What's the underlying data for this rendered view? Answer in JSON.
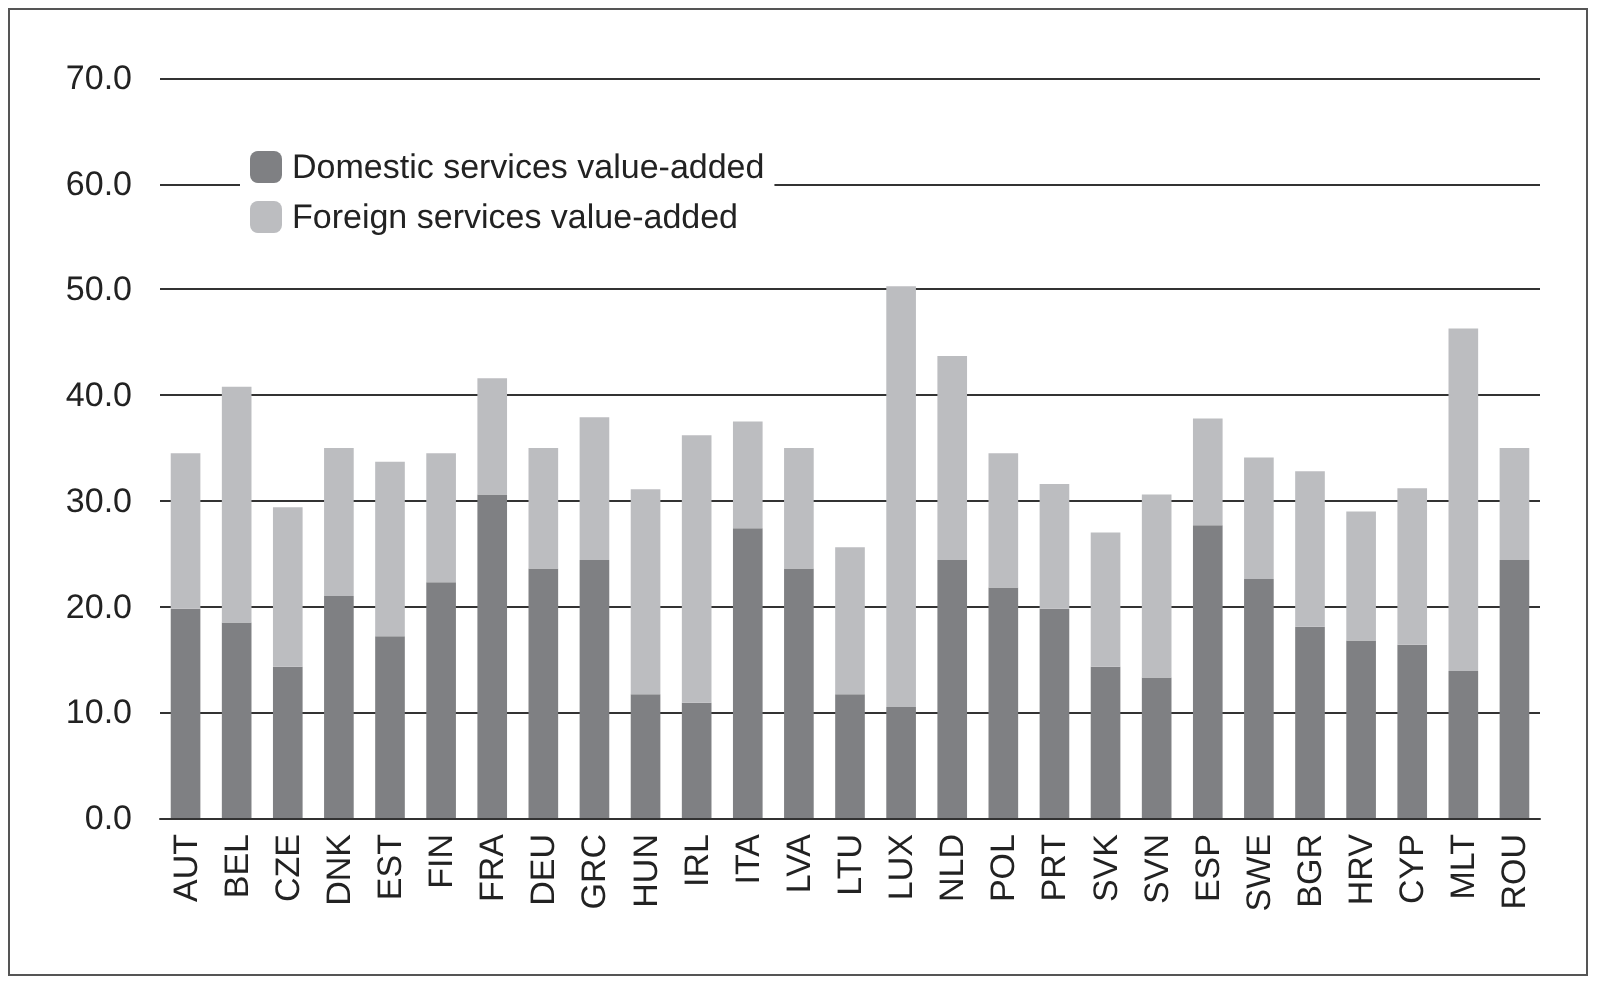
{
  "chart_data": {
    "type": "bar",
    "stacked": true,
    "categories": [
      "AUT",
      "BEL",
      "CZE",
      "DNK",
      "EST",
      "FIN",
      "FRA",
      "DEU",
      "GRC",
      "HUN",
      "IRL",
      "ITA",
      "LVA",
      "LTU",
      "LUX",
      "NLD",
      "POL",
      "PRT",
      "SVK",
      "SVN",
      "ESP",
      "SWE",
      "BGR",
      "HRV",
      "CYP",
      "MLT",
      "ROU"
    ],
    "series": [
      {
        "name": "Domestic services value-added",
        "color": "#7f8083",
        "values": [
          19.8,
          18.5,
          14.3,
          21.0,
          17.2,
          22.3,
          30.6,
          23.6,
          24.4,
          11.7,
          10.9,
          27.4,
          23.6,
          11.7,
          10.5,
          24.4,
          21.8,
          19.8,
          14.3,
          13.3,
          27.7,
          22.6,
          18.1,
          16.8,
          16.4,
          13.9,
          24.4
        ]
      },
      {
        "name": "Foreign services value-added",
        "color": "#bcbdc0",
        "values": [
          14.7,
          22.3,
          15.1,
          14.0,
          16.5,
          12.2,
          11.0,
          11.4,
          13.5,
          19.4,
          25.3,
          10.1,
          11.4,
          13.9,
          39.8,
          19.3,
          12.7,
          11.8,
          12.7,
          17.3,
          10.1,
          11.5,
          14.7,
          12.2,
          14.8,
          32.4,
          10.6
        ]
      }
    ],
    "ylim": [
      0,
      70
    ],
    "yticks": [
      {
        "value": 0,
        "label": "0.0"
      },
      {
        "value": 10,
        "label": "10.0"
      },
      {
        "value": 20,
        "label": "20.0"
      },
      {
        "value": 30,
        "label": "30.0"
      },
      {
        "value": 40,
        "label": "40.0"
      },
      {
        "value": 50,
        "label": "50.0"
      },
      {
        "value": 60,
        "label": "60.0"
      },
      {
        "value": 70,
        "label": "70.0"
      }
    ],
    "grid": "y",
    "legend": "top left"
  }
}
